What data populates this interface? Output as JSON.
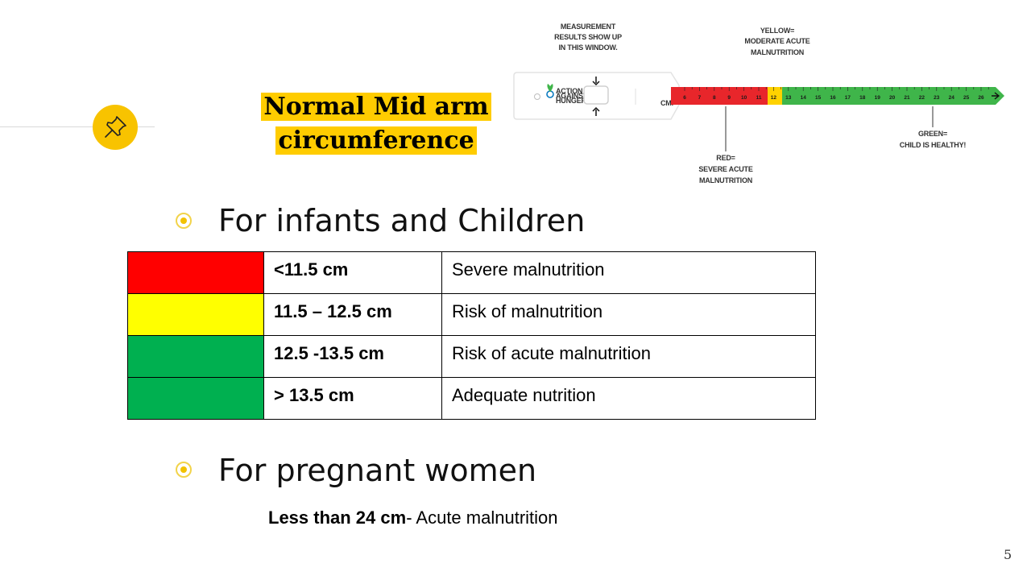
{
  "slide": {
    "title_line1": "Normal Mid arm",
    "title_line2": "circumference",
    "page_number": "5"
  },
  "icons": {
    "pin": "pushpin-icon",
    "bullet": "circle-bullet-icon"
  },
  "tape_image": {
    "callout_measurement": [
      "MEASUREMENT",
      "RESULTS SHOW UP",
      "IN THIS WINDOW."
    ],
    "callout_yellow": [
      "YELLOW=",
      "MODERATE ACUTE",
      "MALNUTRITION"
    ],
    "callout_red": [
      "RED=",
      "SEVERE ACUTE",
      "MALNUTRITION"
    ],
    "callout_green": [
      "GREEN=",
      "CHILD IS HEALTHY!"
    ],
    "logo_text": [
      "ACTION",
      "AGAINST",
      "HUNGER"
    ],
    "unit_label": "CM.",
    "tick_numbers": [
      "6",
      "7",
      "8",
      "9",
      "10",
      "11",
      "12",
      "13",
      "14",
      "15",
      "16",
      "17",
      "18",
      "19",
      "20",
      "21",
      "22",
      "23",
      "24",
      "25",
      "26"
    ]
  },
  "section1": {
    "heading": "For infants and Children",
    "rows": [
      {
        "color": "#ff0000",
        "range": "<11.5 cm",
        "meaning": "Severe malnutrition"
      },
      {
        "color": "#ffff00",
        "range": "11.5 – 12.5 cm",
        "meaning": "Risk of malnutrition"
      },
      {
        "color": "#00b050",
        "range": "12.5 -13.5 cm",
        "meaning": "Risk of acute malnutrition"
      },
      {
        "color": "#00b050",
        "range": "> 13.5 cm",
        "meaning": "Adequate nutrition"
      }
    ]
  },
  "section2": {
    "heading": "For pregnant women",
    "threshold": "Less than 24 cm",
    "meaning": "- Acute malnutrition"
  },
  "colors": {
    "accent_yellow": "#ffcc00",
    "badge_yellow": "#f8c300",
    "tape_red": "#e8262b",
    "tape_yellow": "#ffd200",
    "tape_green": "#3fb54a"
  }
}
